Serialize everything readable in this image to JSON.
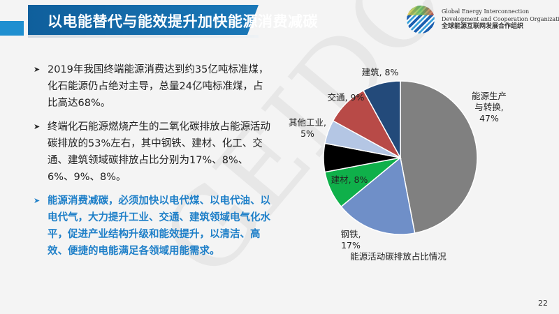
{
  "header": {
    "title": "以电能替代与能效提升加快能源消费减碳",
    "org_en_1": "Global Energy Interconnection",
    "org_en_2": "Development and Cooperation Organization",
    "org_cn": "全球能源互联网发展合作组织",
    "accent": "#1a6faf"
  },
  "watermark": "GEIDCO",
  "bullets": [
    {
      "text": "2019年我国终端能源消费达到约35亿吨标准煤，化石能源仍占绝对主导，总量24亿吨标准煤，占比高达68%。",
      "highlight": false
    },
    {
      "text": "终端化石能源燃烧产生的二氧化碳排放占能源活动碳排放的53%左右，其中钢铁、建材、化工、交通、建筑领域碳排放占比分别为17%、8%、6%、9%、8%。",
      "highlight": false
    },
    {
      "text": "能源消费减碳，必须加快以电代煤、以电代油、以电代气，大力提升工业、交通、建筑领域电气化水平，促进产业结构升级和能效提升，以清洁、高效、便捷的电能满足各领域用能需求。",
      "highlight": true
    }
  ],
  "bullet_icon": "arrowhead-icon",
  "chart_data": {
    "type": "pie",
    "title": "能源活动碳排放占比情况",
    "unit": "%",
    "slices": [
      {
        "label": "能源生产与转换",
        "value": 47,
        "label_text": [
          "能源生产",
          "与转换,",
          "47%"
        ],
        "color": "#808080"
      },
      {
        "label": "钢铁",
        "value": 17,
        "label_text": [
          "钢铁,",
          "17%"
        ],
        "color": "#6f8fc8"
      },
      {
        "label": "建材",
        "value": 8,
        "label_text": [
          "建材, 8%"
        ],
        "color": "#0fb04a"
      },
      {
        "label": "",
        "value": 6,
        "label_text": [],
        "color": "#000000"
      },
      {
        "label": "其他工业",
        "value": 5,
        "label_text": [
          "其他工业,",
          "5%"
        ],
        "color": "#b4c6e4"
      },
      {
        "label": "交通",
        "value": 9,
        "label_text": [
          "交通, 9%"
        ],
        "color": "#b84a47"
      },
      {
        "label": "建筑",
        "value": 8,
        "label_text": [
          "建筑, 8%"
        ],
        "color": "#234a7a"
      }
    ],
    "start": "12 o'clock",
    "direction": "clockwise"
  },
  "page_number": "22"
}
